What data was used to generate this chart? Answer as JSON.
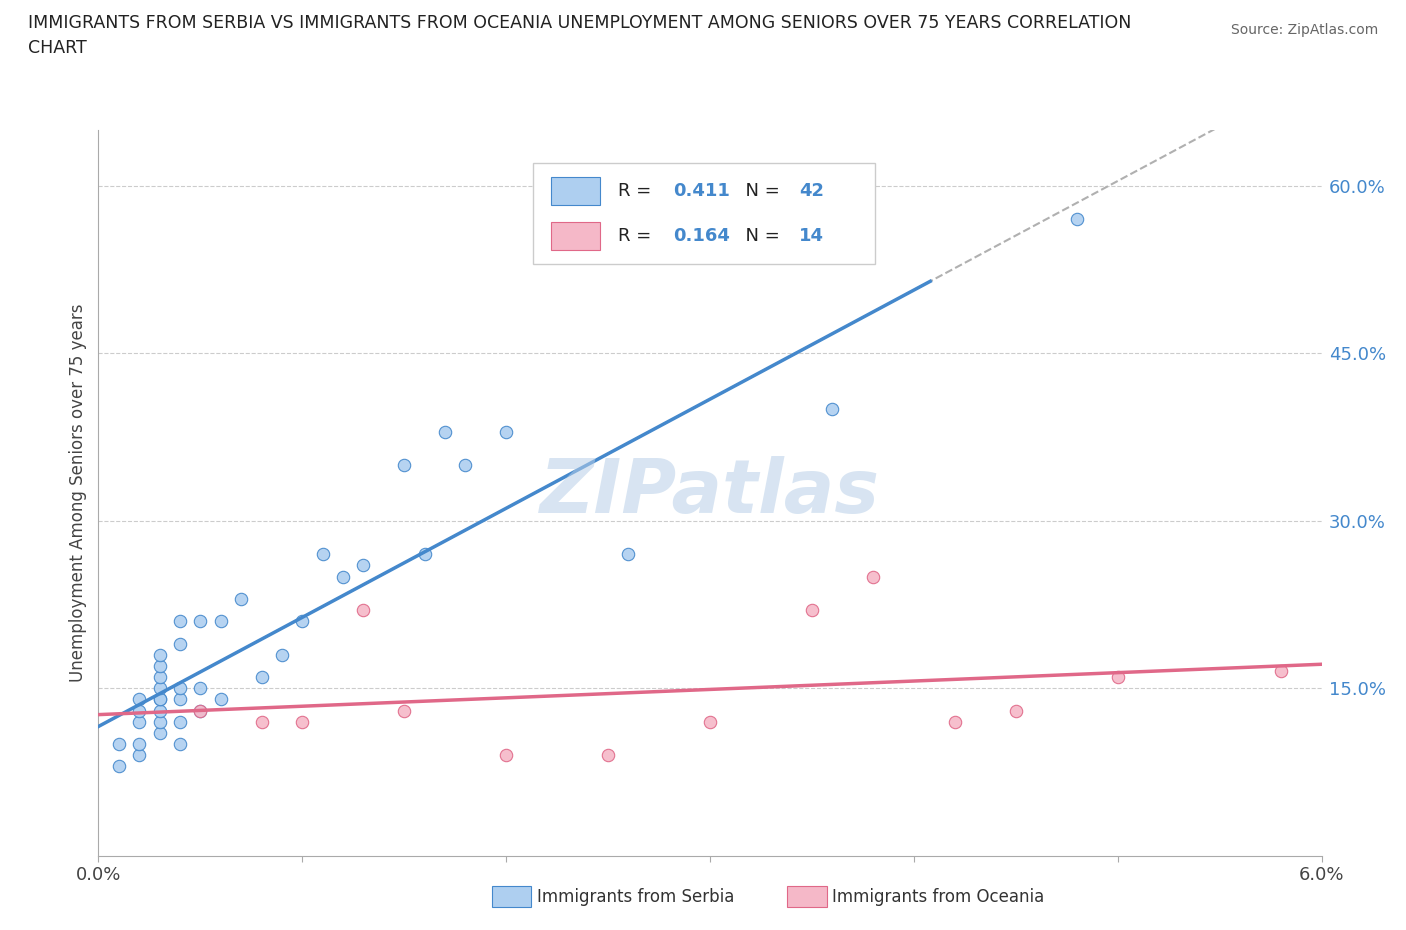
{
  "title_line1": "IMMIGRANTS FROM SERBIA VS IMMIGRANTS FROM OCEANIA UNEMPLOYMENT AMONG SENIORS OVER 75 YEARS CORRELATION",
  "title_line2": "CHART",
  "source": "Source: ZipAtlas.com",
  "ylabel": "Unemployment Among Seniors over 75 years",
  "xlim": [
    0.0,
    0.06
  ],
  "ylim": [
    0.0,
    0.65
  ],
  "xticks": [
    0.0,
    0.01,
    0.02,
    0.03,
    0.04,
    0.05,
    0.06
  ],
  "xticklabels": [
    "0.0%",
    "",
    "",
    "",
    "",
    "",
    "6.0%"
  ],
  "yticks_right": [
    0.15,
    0.3,
    0.45,
    0.6
  ],
  "ytick_right_labels": [
    "15.0%",
    "30.0%",
    "45.0%",
    "60.0%"
  ],
  "serbia_R": "0.411",
  "serbia_N": "42",
  "oceania_R": "0.164",
  "oceania_N": "14",
  "serbia_color": "#aecff0",
  "oceania_color": "#f5b8c8",
  "serbia_line_color": "#4488cc",
  "oceania_line_color": "#e06888",
  "dashed_line_color": "#b0b0b0",
  "serbia_x": [
    0.001,
    0.001,
    0.002,
    0.002,
    0.002,
    0.002,
    0.002,
    0.003,
    0.003,
    0.003,
    0.003,
    0.003,
    0.003,
    0.003,
    0.003,
    0.003,
    0.004,
    0.004,
    0.004,
    0.004,
    0.004,
    0.004,
    0.005,
    0.005,
    0.005,
    0.006,
    0.006,
    0.007,
    0.008,
    0.009,
    0.01,
    0.011,
    0.012,
    0.013,
    0.015,
    0.016,
    0.017,
    0.018,
    0.02,
    0.026,
    0.036,
    0.048
  ],
  "serbia_y": [
    0.08,
    0.1,
    0.09,
    0.1,
    0.12,
    0.13,
    0.14,
    0.11,
    0.12,
    0.13,
    0.14,
    0.14,
    0.15,
    0.16,
    0.17,
    0.18,
    0.1,
    0.12,
    0.14,
    0.15,
    0.19,
    0.21,
    0.13,
    0.15,
    0.21,
    0.14,
    0.21,
    0.23,
    0.16,
    0.18,
    0.21,
    0.27,
    0.25,
    0.26,
    0.35,
    0.27,
    0.38,
    0.35,
    0.38,
    0.27,
    0.4,
    0.57
  ],
  "oceania_x": [
    0.005,
    0.008,
    0.01,
    0.013,
    0.015,
    0.02,
    0.025,
    0.03,
    0.035,
    0.038,
    0.042,
    0.045,
    0.05,
    0.058
  ],
  "oceania_y": [
    0.13,
    0.12,
    0.12,
    0.22,
    0.13,
    0.09,
    0.09,
    0.12,
    0.22,
    0.25,
    0.12,
    0.13,
    0.16,
    0.165
  ],
  "watermark": "ZIPatlas",
  "background_color": "#ffffff",
  "grid_color": "#cccccc",
  "serbia_label": "Immigrants from Serbia",
  "oceania_label": "Immigrants from Oceania"
}
